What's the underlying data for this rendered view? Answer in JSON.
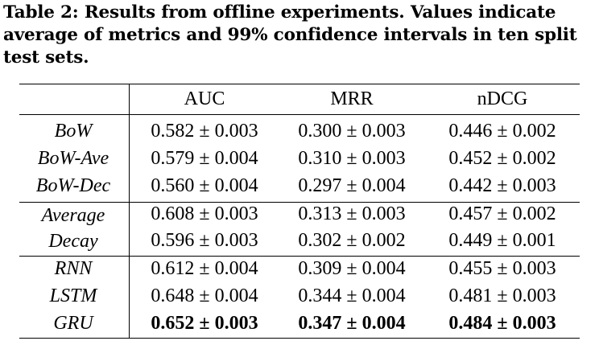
{
  "caption": {
    "lines": [
      "Table 2: Results from offline experiments. Values indicate",
      "average of metrics and 99% confidence intervals in ten split",
      "test sets."
    ]
  },
  "table": {
    "columns": [
      "AUC",
      "MRR",
      "nDCG"
    ],
    "groups": [
      {
        "rows": [
          {
            "name": "BoW",
            "values": [
              "0.582 ± 0.003",
              "0.300 ± 0.003",
              "0.446 ± 0.002"
            ],
            "bold": false
          },
          {
            "name": "BoW-Ave",
            "values": [
              "0.579 ± 0.004",
              "0.310 ± 0.003",
              "0.452 ± 0.002"
            ],
            "bold": false
          },
          {
            "name": "BoW-Dec",
            "values": [
              "0.560 ± 0.004",
              "0.297 ± 0.004",
              "0.442 ± 0.003"
            ],
            "bold": false
          }
        ]
      },
      {
        "rows": [
          {
            "name": "Average",
            "values": [
              "0.608 ± 0.003",
              "0.313 ± 0.003",
              "0.457 ± 0.002"
            ],
            "bold": false
          },
          {
            "name": "Decay",
            "values": [
              "0.596 ± 0.003",
              "0.302 ± 0.002",
              "0.449 ± 0.001"
            ],
            "bold": false
          }
        ]
      },
      {
        "rows": [
          {
            "name": "RNN",
            "values": [
              "0.612 ± 0.004",
              "0.309 ± 0.004",
              "0.455 ± 0.003"
            ],
            "bold": false
          },
          {
            "name": "LSTM",
            "values": [
              "0.648 ± 0.004",
              "0.344 ± 0.004",
              "0.481 ± 0.003"
            ],
            "bold": false
          },
          {
            "name": "GRU",
            "values": [
              "0.652 ± 0.003",
              "0.347 ± 0.004",
              "0.484 ± 0.003"
            ],
            "bold": true
          }
        ]
      }
    ]
  }
}
